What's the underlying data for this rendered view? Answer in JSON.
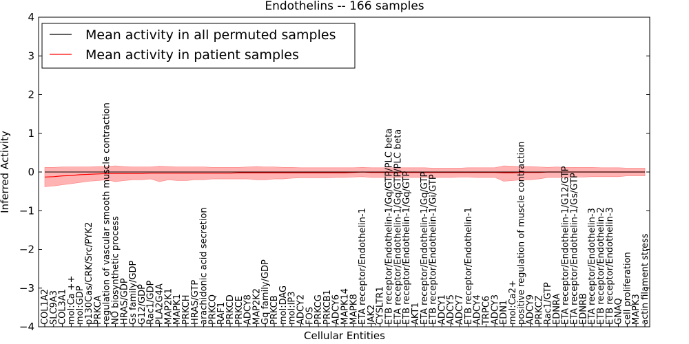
{
  "chart_data": {
    "type": "line",
    "title": "Endothelins -- 166 samples",
    "xlabel": "Cellular Entities",
    "ylabel": "Inferred Activity",
    "ylim": [
      -4,
      4
    ],
    "yticks": [
      4,
      3,
      2,
      1,
      0,
      -1,
      -2,
      -3,
      -4
    ],
    "ytick_labels": [
      "4",
      "3",
      "2",
      "1",
      "0",
      "−1",
      "−2",
      "−3",
      "−4"
    ],
    "grid": false,
    "zero_line": "dashed",
    "legend_position": "top-left",
    "legend": [
      {
        "name": "Mean activity in all permuted samples",
        "color": "#000000"
      },
      {
        "name": "Mean activity in patient samples",
        "color": "#ff0000"
      }
    ],
    "categories": [
      "COL1A2",
      "SLC9A3",
      "COL3A1",
      "mol:Ca ++",
      "mol:GDP",
      "p130Cas/CRK/Src/PYK2",
      "PRKCA",
      "regulation of vascular smooth muscle contraction",
      "NO biosynthetic process",
      "HRAS/GDP",
      "Gs family/GDP",
      "G12/GDP",
      "Rac1/GDP",
      "PLA2G4A",
      "MAP2K1",
      "MAPK1",
      "PRKCH",
      "HRAS/GTP",
      "arachidonic acid secretion",
      "PRKCQ",
      "RAF1",
      "PRKCD",
      "PRKCE",
      "ADCY8",
      "MAP2K2",
      "Gq family/GDP",
      "PRKCB",
      "mol:DAG",
      "mol:IP3",
      "ADCY2",
      "FOS",
      "PRKCG",
      "PRKCB1",
      "ADCY6",
      "MAPK14",
      "MAPK8",
      "ETA receptor/Endothelin-1",
      "JAK2",
      "CYSLTR1",
      "ETB receptor/Endothelin-1/Gq/GTP/PLC beta",
      "ETA receptor/Endothelin-1/Gq/GTP/PLC beta",
      "ETB receptor/Endothelin-1/Gq/GTP",
      "AKT1",
      "ETA receptor/Endothelin-1/Gq/GTP",
      "ETB receptor/Endothelin-1/Gi/GTP",
      "ADCY1",
      "ADCY5",
      "ADCY7",
      "ETB receptor/Endothelin-1",
      "ADCY4",
      "TRPC6",
      "ADCY3",
      "EDN1",
      "mol:Ca2+",
      "positive regulation of muscle contraction",
      "ADCY9",
      "PRKCZ",
      "Rac1/GTP",
      "EDNRA",
      "ETA receptor/Endothelin-1/G12/GTP",
      "ETA receptor/Endothelin-1/Gs/GTP",
      "EDNRB",
      "ETA receptor/Endothelin-3",
      "ETB receptor/Endothelin-2",
      "ETB receptor/Endothelin-3",
      "GNAQ",
      "cell proliferation",
      "MAPK3",
      "actin filament stress"
    ],
    "series": [
      {
        "name": "Mean activity in all permuted samples",
        "color": "#000000",
        "values": [
          0,
          0,
          0,
          0,
          0,
          0,
          0,
          0,
          0,
          0,
          0,
          0,
          0,
          0,
          0,
          0,
          0,
          0,
          0,
          0,
          0,
          0,
          0,
          0,
          0,
          0,
          0,
          0,
          0,
          0,
          0,
          0,
          0,
          0,
          0,
          0,
          0,
          0,
          0,
          0,
          0,
          0,
          0,
          0,
          0,
          0,
          0,
          0,
          0,
          0,
          0,
          0,
          0,
          0,
          0,
          0,
          0,
          0,
          0,
          0,
          0,
          0,
          0,
          0,
          0,
          0,
          0,
          0,
          0
        ]
      },
      {
        "name": "Mean activity in patient samples",
        "color": "#ff0000",
        "fill": "#ff9999",
        "values": [
          -0.13,
          -0.12,
          -0.1,
          -0.09,
          -0.07,
          -0.06,
          -0.05,
          -0.04,
          -0.04,
          -0.04,
          -0.04,
          -0.04,
          -0.03,
          -0.03,
          -0.03,
          -0.03,
          -0.03,
          -0.03,
          -0.03,
          -0.03,
          -0.03,
          -0.03,
          -0.02,
          -0.02,
          -0.02,
          -0.02,
          -0.02,
          -0.02,
          -0.02,
          -0.02,
          -0.02,
          -0.02,
          -0.02,
          -0.02,
          -0.02,
          -0.01,
          0.0,
          -0.01,
          -0.01,
          -0.01,
          -0.01,
          -0.01,
          -0.01,
          -0.01,
          -0.01,
          -0.01,
          -0.01,
          -0.01,
          -0.01,
          -0.01,
          -0.01,
          -0.01,
          -0.02,
          -0.02,
          -0.01,
          -0.01,
          -0.01,
          0.0,
          0.0,
          0.0,
          0.0,
          0.0,
          0.0,
          0.0,
          0.0,
          0.0,
          0.0,
          0.0,
          0.0
        ],
        "lower": [
          -0.38,
          -0.36,
          -0.33,
          -0.3,
          -0.27,
          -0.24,
          -0.22,
          -0.2,
          -0.25,
          -0.22,
          -0.2,
          -0.2,
          -0.18,
          -0.25,
          -0.2,
          -0.22,
          -0.22,
          -0.2,
          -0.2,
          -0.18,
          -0.18,
          -0.18,
          -0.18,
          -0.18,
          -0.2,
          -0.2,
          -0.18,
          -0.18,
          -0.16,
          -0.15,
          -0.15,
          -0.15,
          -0.15,
          -0.14,
          -0.14,
          -0.13,
          -0.12,
          -0.14,
          -0.14,
          -0.14,
          -0.14,
          -0.14,
          -0.14,
          -0.14,
          -0.14,
          -0.14,
          -0.14,
          -0.13,
          -0.13,
          -0.14,
          -0.14,
          -0.14,
          -0.24,
          -0.22,
          -0.2,
          -0.2,
          -0.18,
          -0.14,
          -0.14,
          -0.14,
          -0.13,
          -0.13,
          -0.12,
          -0.12,
          -0.12,
          -0.12,
          -0.1,
          -0.1,
          -0.1
        ],
        "upper": [
          0.12,
          0.12,
          0.13,
          0.13,
          0.13,
          0.13,
          0.14,
          0.14,
          0.16,
          0.14,
          0.13,
          0.13,
          0.13,
          0.15,
          0.14,
          0.13,
          0.13,
          0.13,
          0.13,
          0.12,
          0.12,
          0.12,
          0.12,
          0.13,
          0.14,
          0.13,
          0.13,
          0.12,
          0.12,
          0.11,
          0.11,
          0.11,
          0.11,
          0.11,
          0.11,
          0.11,
          0.12,
          0.11,
          0.11,
          0.11,
          0.11,
          0.11,
          0.11,
          0.11,
          0.1,
          0.1,
          0.1,
          0.1,
          0.11,
          0.11,
          0.11,
          0.11,
          0.16,
          0.15,
          0.14,
          0.14,
          0.13,
          0.12,
          0.13,
          0.12,
          0.12,
          0.12,
          0.12,
          0.11,
          0.11,
          0.11,
          0.1,
          0.1,
          0.1
        ]
      }
    ]
  }
}
